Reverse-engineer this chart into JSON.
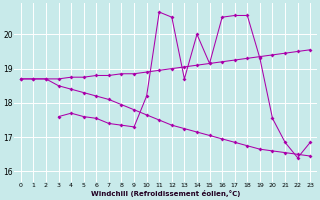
{
  "xlabel": "Windchill (Refroidissement éolien,°C)",
  "bg_color": "#c8eaea",
  "line_color": "#aa00aa",
  "xlim": [
    -0.5,
    23.5
  ],
  "ylim": [
    15.7,
    20.9
  ],
  "yticks": [
    16,
    17,
    18,
    19,
    20
  ],
  "xticks": [
    0,
    1,
    2,
    3,
    4,
    5,
    6,
    7,
    8,
    9,
    10,
    11,
    12,
    13,
    14,
    15,
    16,
    17,
    18,
    19,
    20,
    21,
    22,
    23
  ],
  "series1_x": [
    0,
    1,
    2,
    3,
    4,
    5,
    6,
    7,
    8,
    9,
    10,
    11,
    12,
    13,
    14,
    15,
    16,
    17,
    18,
    19,
    20,
    21,
    22,
    23
  ],
  "series1_y": [
    18.7,
    18.7,
    18.7,
    18.7,
    18.75,
    18.75,
    18.8,
    18.8,
    18.85,
    18.85,
    18.9,
    18.95,
    19.0,
    19.05,
    19.1,
    19.15,
    19.2,
    19.25,
    19.3,
    19.35,
    19.4,
    19.45,
    19.5,
    19.55
  ],
  "series2_x": [
    0,
    1,
    2,
    3,
    4,
    5,
    6,
    7,
    8,
    9,
    10,
    11,
    12,
    13,
    14,
    15,
    16,
    17,
    18,
    19,
    20,
    21,
    22,
    23
  ],
  "series2_y": [
    18.7,
    18.7,
    18.7,
    18.5,
    18.4,
    18.3,
    18.2,
    18.1,
    17.95,
    17.8,
    17.65,
    17.5,
    17.35,
    17.25,
    17.15,
    17.05,
    16.95,
    16.85,
    16.75,
    16.65,
    16.6,
    16.55,
    16.5,
    16.45
  ],
  "series3_x": [
    3,
    4,
    5,
    6,
    7,
    8,
    9,
    10,
    11,
    12,
    13,
    14,
    15,
    16,
    17,
    18,
    19,
    20,
    21,
    22,
    23
  ],
  "series3_y": [
    17.6,
    17.7,
    17.6,
    17.55,
    17.4,
    17.35,
    17.3,
    18.2,
    20.65,
    20.5,
    18.7,
    20.0,
    19.15,
    20.5,
    20.55,
    20.55,
    19.3,
    17.55,
    16.85,
    16.4,
    16.85
  ]
}
